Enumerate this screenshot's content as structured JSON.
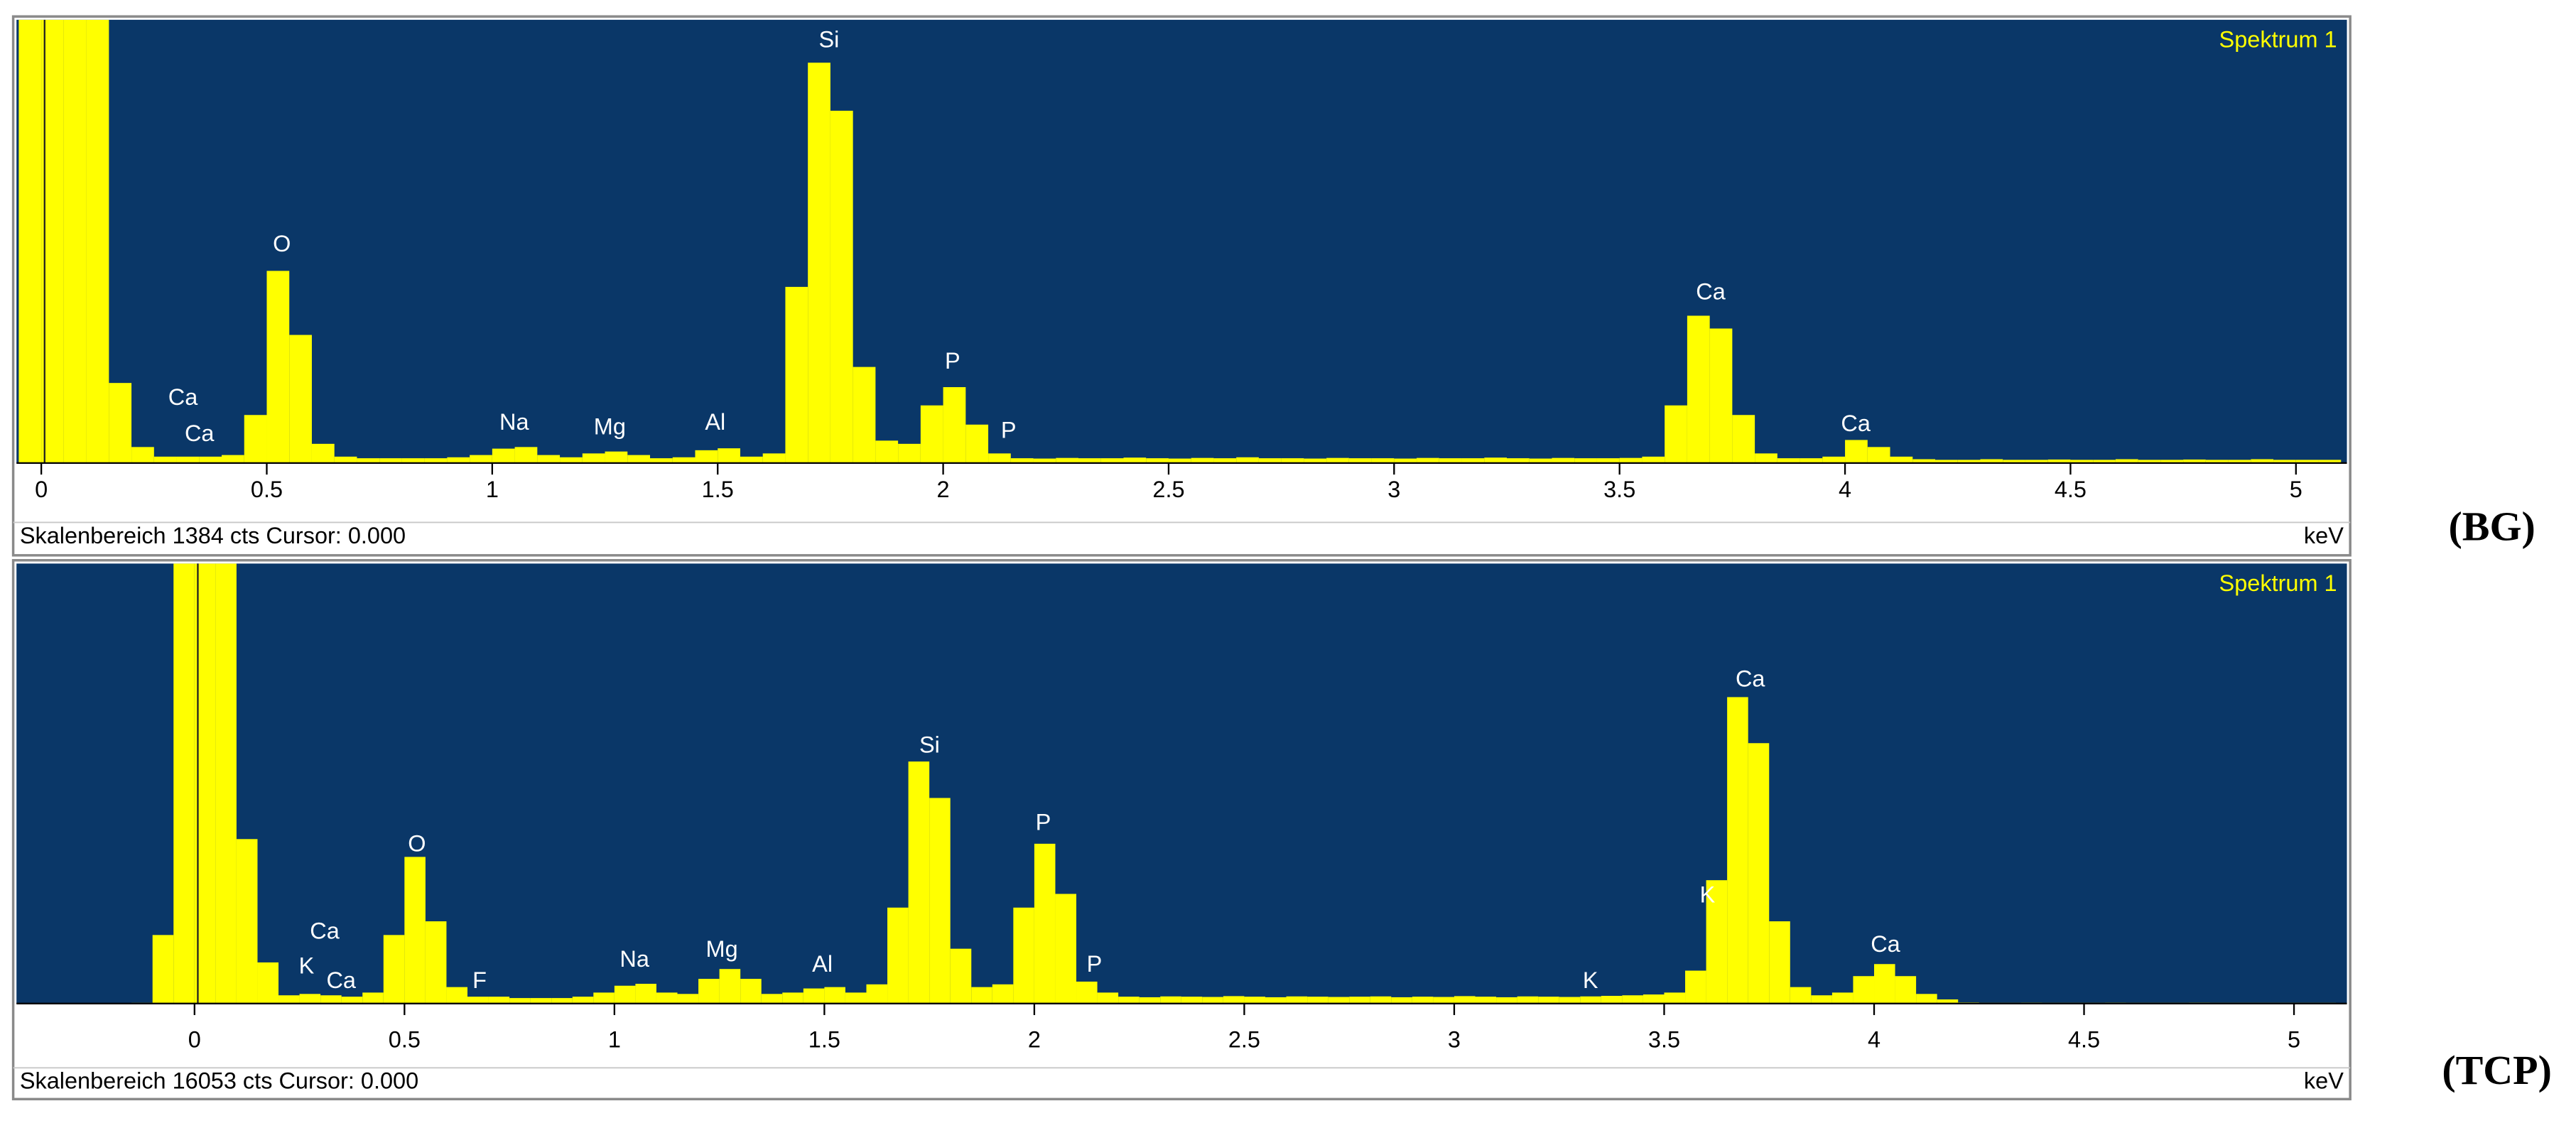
{
  "chart_data": [
    {
      "type": "histogram",
      "legend": "Spektrum 1",
      "status": "Skalenbereich 1384 cts Cursor: 0.000",
      "unit_label": "keV",
      "panel_label": "(BG)",
      "color": "#ffff00",
      "background": "#0a3768",
      "annotations": [
        "Ca",
        "Ca",
        "O",
        "Na",
        "Mg",
        "Al",
        "Si",
        "P",
        "P",
        "Ca",
        "Ca"
      ],
      "xlim": [
        -0.055,
        5.113
      ],
      "xticks": [
        0,
        0.5,
        1,
        1.5,
        2,
        2.5,
        3,
        3.5,
        4,
        4.5,
        5
      ],
      "ylim": [
        0,
        1384
      ],
      "bins": [
        -0.05,
        0,
        0.05,
        0.1,
        0.15,
        0.2,
        0.25,
        0.3,
        0.35,
        0.4,
        0.45,
        0.5,
        0.55,
        0.6,
        0.65,
        0.7,
        0.75,
        0.8,
        0.85,
        0.9,
        0.95,
        1,
        1.05,
        1.1,
        1.15,
        1.2,
        1.25,
        1.3,
        1.35,
        1.4,
        1.45,
        1.5,
        1.55,
        1.6,
        1.65,
        1.7,
        1.75,
        1.8,
        1.85,
        1.9,
        1.95,
        2,
        2.05,
        2.1,
        2.15,
        2.2,
        2.25,
        2.3,
        2.35,
        2.4,
        2.45,
        2.5,
        2.55,
        2.6,
        2.65,
        2.7,
        2.75,
        2.8,
        2.85,
        2.9,
        2.95,
        3,
        3.05,
        3.1,
        3.15,
        3.2,
        3.25,
        3.3,
        3.35,
        3.4,
        3.45,
        3.5,
        3.55,
        3.6,
        3.65,
        3.7,
        3.75,
        3.8,
        3.85,
        3.9,
        3.95,
        4,
        4.05,
        4.1,
        4.15,
        4.2,
        4.25,
        4.3,
        4.35,
        4.4,
        4.45,
        4.5,
        4.55,
        4.6,
        4.65,
        4.7,
        4.75,
        4.8,
        4.85,
        4.9,
        4.95,
        5,
        5.05,
        5.1
      ],
      "values": [
        1384,
        1384,
        1384,
        1384,
        250,
        50,
        20,
        20,
        20,
        25,
        150,
        600,
        400,
        60,
        20,
        15,
        15,
        15,
        15,
        18,
        25,
        45,
        50,
        25,
        18,
        30,
        36,
        25,
        15,
        18,
        40,
        46,
        20,
        30,
        550,
        1250,
        1100,
        300,
        70,
        60,
        180,
        237,
        120,
        30,
        15,
        14,
        16,
        15,
        15,
        17,
        15,
        14,
        16,
        15,
        18,
        15,
        15,
        14,
        16,
        15,
        15,
        14,
        16,
        15,
        15,
        17,
        15,
        14,
        16,
        15,
        15,
        16,
        20,
        180,
        460,
        420,
        150,
        30,
        15,
        15,
        20,
        72,
        50,
        20,
        12,
        10,
        10,
        12,
        10,
        10,
        11,
        10,
        10,
        12,
        10,
        10,
        11,
        10,
        10,
        12,
        10,
        10,
        10
      ]
    },
    {
      "type": "histogram",
      "legend": "Spektrum 1",
      "status": "Skalenbereich 16053 cts Cursor: 0.000",
      "unit_label": "keV",
      "panel_label": "(TCP)",
      "color": "#ffff00",
      "background": "#0a3768",
      "annotations": [
        "Ca",
        "K",
        "Ca",
        "O",
        "F",
        "Na",
        "Mg",
        "Al",
        "Si",
        "P",
        "P",
        "K",
        "K",
        "Ca",
        "Ca"
      ],
      "xlim": [
        -0.424,
        5.126
      ],
      "xticks": [
        0,
        0.5,
        1,
        1.5,
        2,
        2.5,
        3,
        3.5,
        4,
        4.5,
        5
      ],
      "ylim": [
        0,
        16053
      ],
      "bins": [
        -0.4,
        -0.35,
        -0.3,
        -0.25,
        -0.2,
        -0.15,
        -0.1,
        -0.05,
        0,
        0.05,
        0.1,
        0.15,
        0.2,
        0.25,
        0.3,
        0.35,
        0.4,
        0.45,
        0.5,
        0.55,
        0.6,
        0.65,
        0.7,
        0.75,
        0.8,
        0.85,
        0.9,
        0.95,
        1,
        1.05,
        1.1,
        1.15,
        1.2,
        1.25,
        1.3,
        1.35,
        1.4,
        1.45,
        1.5,
        1.55,
        1.6,
        1.65,
        1.7,
        1.75,
        1.8,
        1.85,
        1.9,
        1.95,
        2,
        2.05,
        2.1,
        2.15,
        2.2,
        2.25,
        2.3,
        2.35,
        2.4,
        2.45,
        2.5,
        2.55,
        2.6,
        2.65,
        2.7,
        2.75,
        2.8,
        2.85,
        2.9,
        2.95,
        3,
        3.05,
        3.1,
        3.15,
        3.2,
        3.25,
        3.3,
        3.35,
        3.4,
        3.45,
        3.5,
        3.55,
        3.6,
        3.65,
        3.7,
        3.75,
        3.8,
        3.85,
        3.9,
        3.95,
        4,
        4.05,
        4.1,
        4.15,
        4.2,
        4.25,
        4.3,
        4.35,
        4.4,
        4.45,
        4.5,
        4.55,
        4.6,
        4.65,
        4.7,
        4.75,
        4.8,
        4.85,
        4.9,
        4.95,
        5,
        5.05,
        5.1
      ],
      "values": [
        0,
        0,
        0,
        0,
        0,
        30,
        2500,
        16053,
        16053,
        16053,
        6000,
        1500,
        300,
        350,
        300,
        250,
        400,
        2500,
        5350,
        3000,
        600,
        250,
        250,
        200,
        200,
        200,
        250,
        400,
        650,
        720,
        400,
        350,
        900,
        1260,
        900,
        350,
        400,
        550,
        600,
        400,
        700,
        3500,
        8830,
        7500,
        2000,
        600,
        700,
        3500,
        5830,
        4000,
        800,
        400,
        250,
        230,
        260,
        250,
        240,
        270,
        250,
        230,
        260,
        250,
        240,
        250,
        260,
        230,
        250,
        240,
        270,
        250,
        230,
        260,
        250,
        240,
        260,
        280,
        300,
        330,
        400,
        1200,
        4500,
        11180,
        9500,
        3000,
        600,
        300,
        400,
        1000,
        1440,
        1000,
        350,
        150,
        40,
        30,
        30,
        35,
        30,
        30,
        30,
        35,
        30,
        30,
        30,
        35,
        30,
        30,
        30,
        30,
        30,
        30
      ]
    }
  ]
}
